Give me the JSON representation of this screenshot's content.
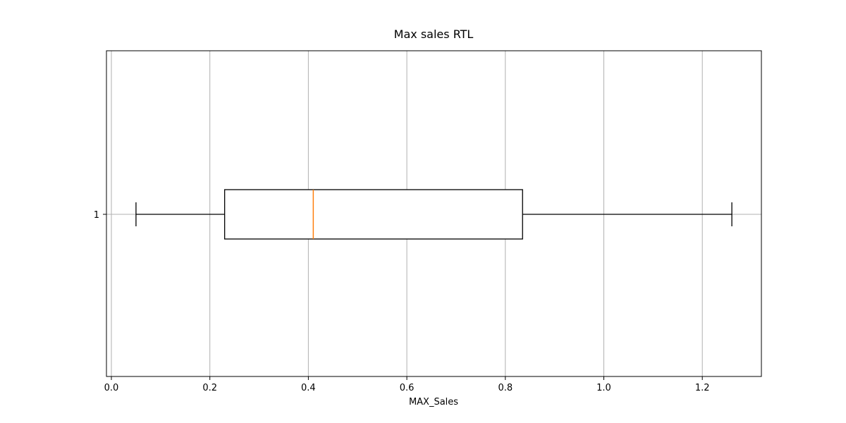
{
  "chart_data": {
    "type": "box",
    "title": "Max sales RTL",
    "xlabel": "MAX_Sales",
    "ylabel": "",
    "orientation": "horizontal",
    "xlim": [
      -0.01,
      1.32
    ],
    "xticks": [
      0.0,
      0.2,
      0.4,
      0.6,
      0.8,
      1.0,
      1.2
    ],
    "xtick_labels": [
      "0.0",
      "0.2",
      "0.4",
      "0.6",
      "0.8",
      "1.0",
      "1.2"
    ],
    "ytick_labels": [
      "1"
    ],
    "grid": true,
    "boxes": [
      {
        "name": "1",
        "whisker_low": 0.05,
        "q1": 0.23,
        "median": 0.41,
        "q3": 0.835,
        "whisker_high": 1.26
      }
    ],
    "colors": {
      "box": "#000000",
      "median": "#ff7f0e",
      "grid": "#b0b0b0"
    }
  }
}
